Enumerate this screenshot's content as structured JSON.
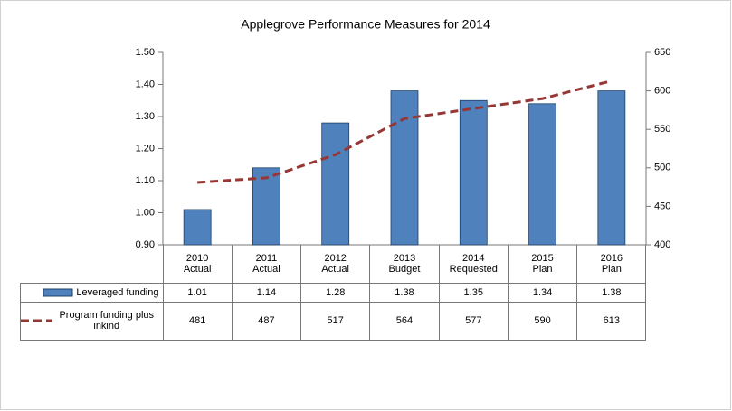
{
  "chart_data": {
    "type": "bar",
    "title": "Applegrove Performance Measures for 2014",
    "categories": [
      [
        "2010",
        "Actual"
      ],
      [
        "2011",
        "Actual"
      ],
      [
        "2012",
        "Actual"
      ],
      [
        "2013",
        "Budget"
      ],
      [
        "2014",
        "Requested"
      ],
      [
        "2015",
        "Plan"
      ],
      [
        "2016",
        "Plan"
      ]
    ],
    "series": [
      {
        "name": "Leveraged funding",
        "type": "bar",
        "color": "#4f81bd",
        "values": [
          1.01,
          1.14,
          1.28,
          1.38,
          1.35,
          1.34,
          1.38
        ]
      },
      {
        "name": "Program funding plus inkind",
        "type": "line",
        "axis": "y2",
        "color": "#953735",
        "values": [
          481,
          487,
          517,
          564,
          577,
          590,
          613
        ]
      }
    ],
    "ylim": [
      0.9,
      1.5
    ],
    "yticks": [
      {
        "value": 0.9,
        "label": "0.90"
      },
      {
        "value": 1.0,
        "label": "1.00"
      },
      {
        "value": 1.1,
        "label": "1.10"
      },
      {
        "value": 1.2,
        "label": "1.20"
      },
      {
        "value": 1.3,
        "label": "1.30"
      },
      {
        "value": 1.4,
        "label": "1.40"
      },
      {
        "value": 1.5,
        "label": "1.50"
      }
    ],
    "y2lim": [
      400,
      650
    ],
    "y2ticks": [
      400,
      450,
      500,
      550,
      600,
      650
    ],
    "grid": false,
    "data_table": true
  }
}
